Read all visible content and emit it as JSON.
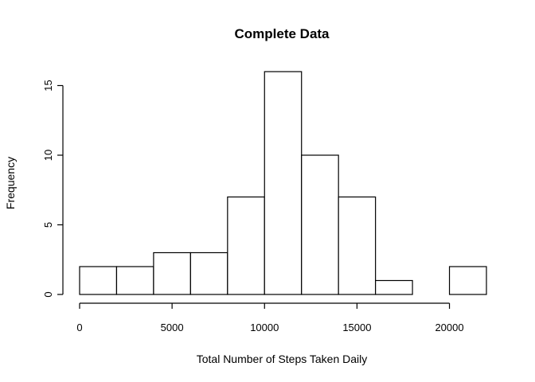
{
  "chart_data": {
    "type": "bar",
    "title": "Complete Data",
    "xlabel": "Total Number of Steps Taken Daily",
    "ylabel": "Frequency",
    "bin_edges": [
      0,
      2000,
      4000,
      6000,
      8000,
      10000,
      12000,
      14000,
      16000,
      18000,
      20000,
      22000
    ],
    "values": [
      2,
      2,
      3,
      3,
      7,
      16,
      10,
      7,
      1,
      0,
      2
    ],
    "xlim": [
      0,
      22000
    ],
    "ylim": [
      0,
      16
    ],
    "x_ticks": [
      0,
      5000,
      10000,
      15000,
      20000
    ],
    "x_tick_labels": [
      "0",
      "5000",
      "10000",
      "15000",
      "20000"
    ],
    "y_ticks": [
      0,
      5,
      10,
      15
    ],
    "y_tick_labels": [
      "0",
      "5",
      "10",
      "15"
    ],
    "grid": false,
    "colors": {
      "bar_fill": "#ffffff",
      "bar_stroke": "#000000"
    }
  }
}
